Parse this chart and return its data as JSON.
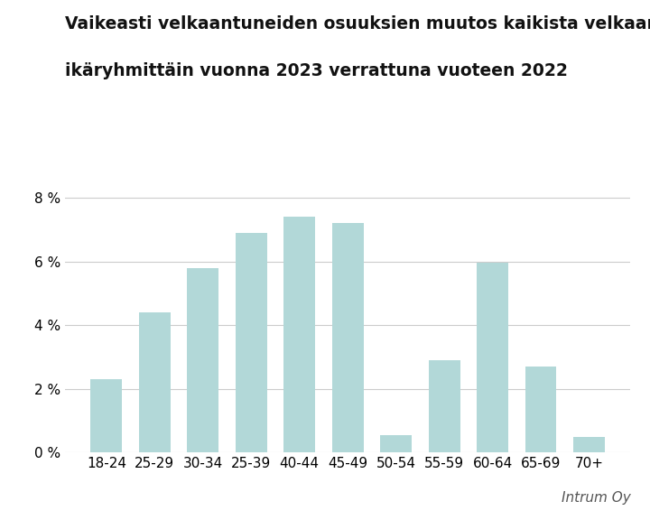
{
  "categories": [
    "18-24",
    "25-29",
    "30-34",
    "25-39",
    "40-44",
    "45-49",
    "50-54",
    "55-59",
    "60-64",
    "65-69",
    "70+"
  ],
  "values": [
    2.3,
    4.4,
    5.8,
    6.9,
    7.4,
    7.2,
    0.55,
    2.9,
    5.95,
    2.7,
    0.5
  ],
  "bar_color": "#b2d8d8",
  "title_line1": "Vaikeasti velkaantuneiden osuuksien muutos kaikista velkaantuneista",
  "title_line2": "ikäryhmittäin vuonna 2023 verrattuna vuoteen 2022",
  "ylim": [
    0,
    8.5
  ],
  "yticks": [
    0,
    2,
    4,
    6,
    8
  ],
  "ytick_labels": [
    "0 %",
    "2 %",
    "4 %",
    "6 %",
    "8 %"
  ],
  "watermark": "Intrum Oy",
  "background_color": "#ffffff",
  "title_fontsize": 13.5,
  "tick_fontsize": 11,
  "watermark_fontsize": 11
}
